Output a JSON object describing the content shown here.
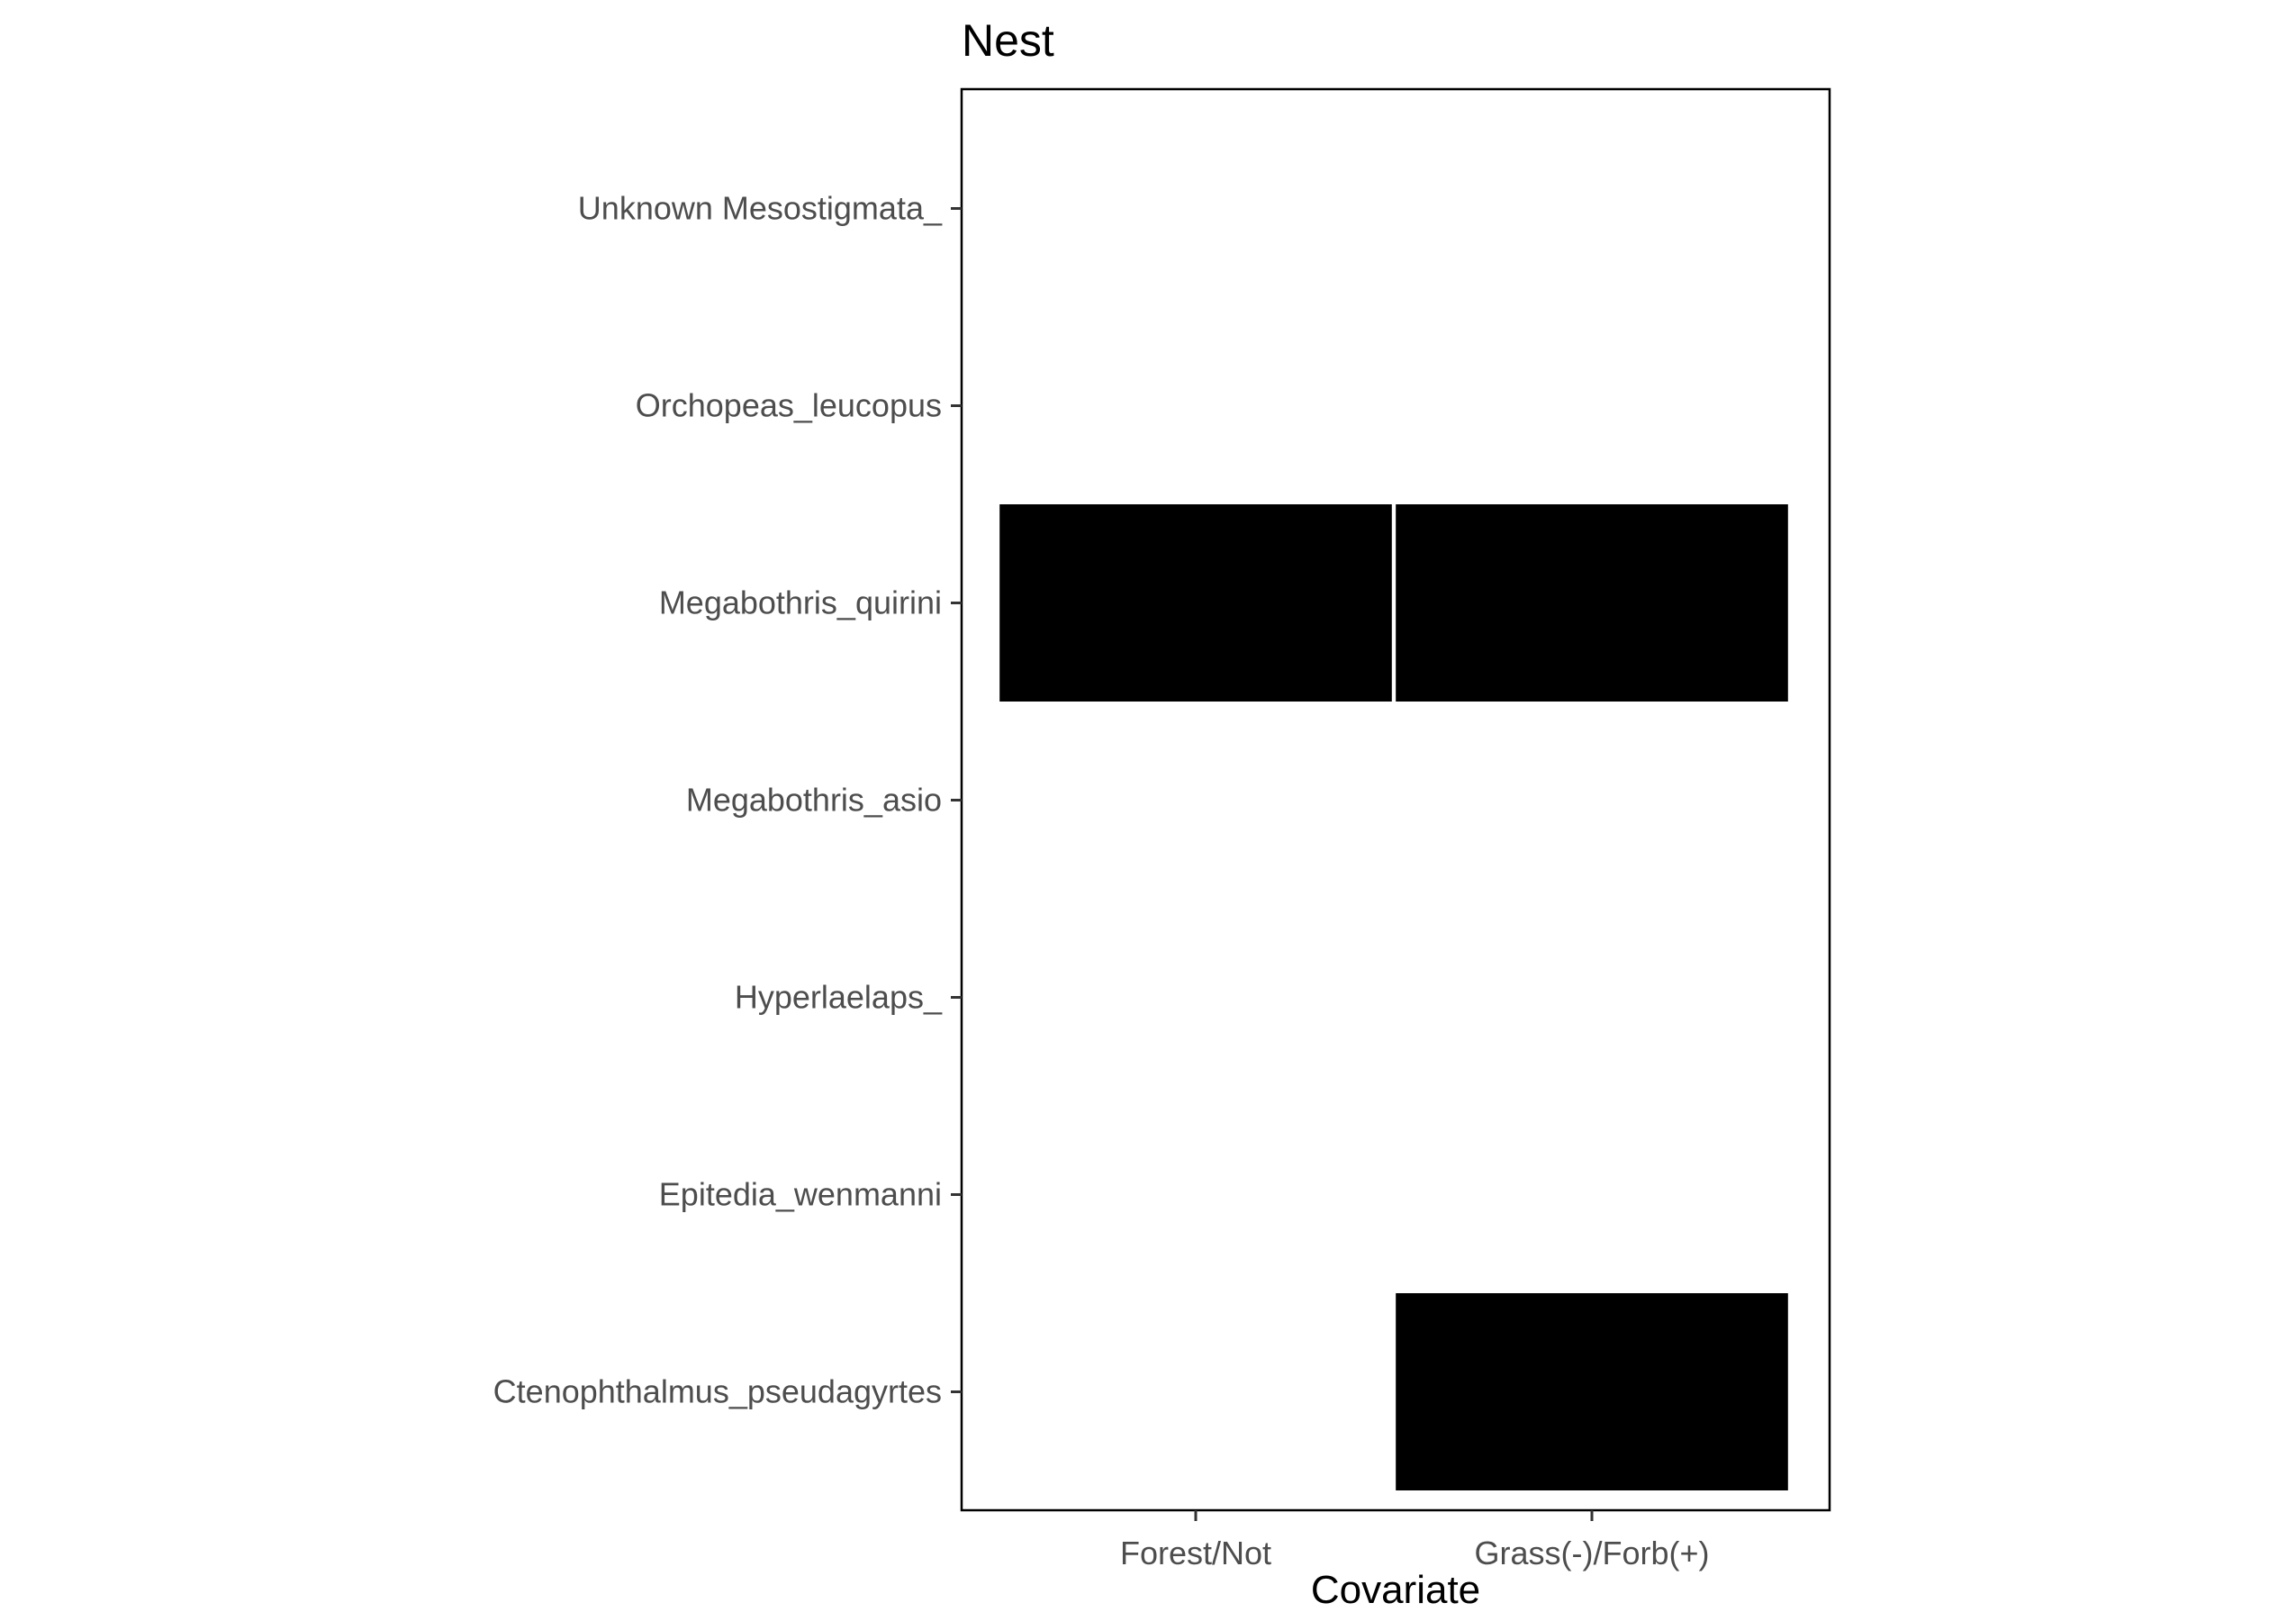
{
  "chart_data": {
    "type": "heatmap",
    "title": "Nest",
    "xlabel": "Covariate",
    "ylabel": "",
    "x_categories": [
      "Forest/Not",
      "Grass(-)/Forb(+)"
    ],
    "y_categories": [
      "Ctenophthalmus_pseudagyrtes",
      "Epitedia_wenmanni",
      "Hyperlaelaps_",
      "Megabothris_asio",
      "Megabothris_quirini",
      "Orchopeas_leucopus",
      "Unknown Mesostigmata_"
    ],
    "cells": [
      {
        "x": "Forest/Not",
        "y": "Megabothris_quirini",
        "fill": "#000000"
      },
      {
        "x": "Grass(-)/Forb(+)",
        "y": "Megabothris_quirini",
        "fill": "#000000"
      },
      {
        "x": "Grass(-)/Forb(+)",
        "y": "Ctenophthalmus_pseudagyrtes",
        "fill": "#000000"
      }
    ],
    "legend": "none",
    "grid": false
  }
}
